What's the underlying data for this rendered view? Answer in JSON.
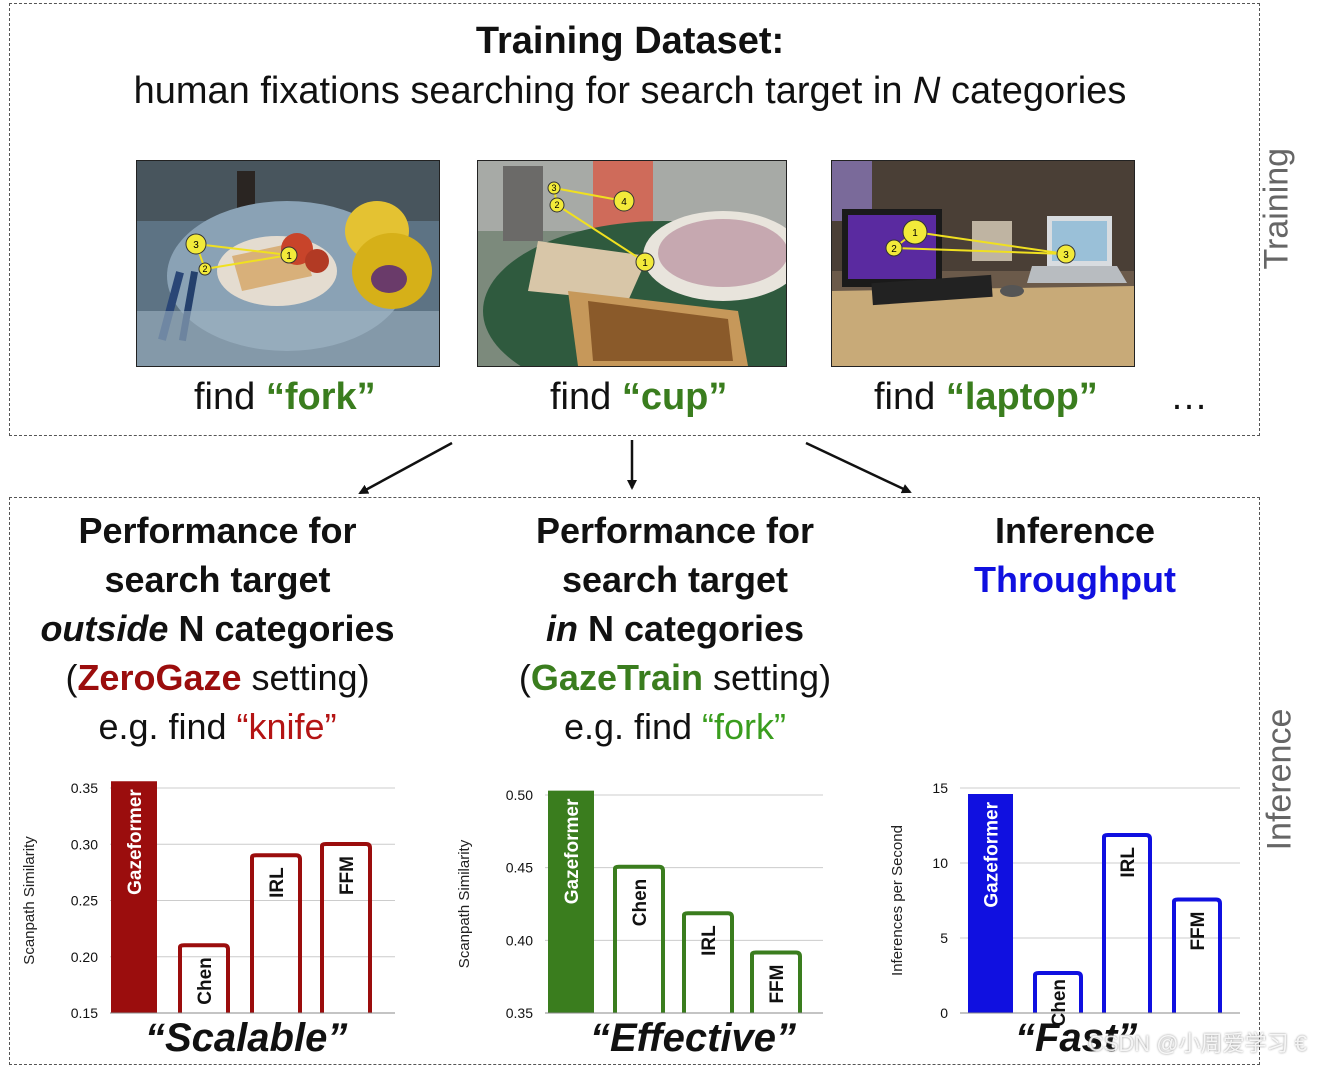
{
  "training": {
    "side_label": "Training",
    "title_bold": "Training Dataset:",
    "title_line2_a": "human fixations searching for search target in ",
    "title_line2_n": "N",
    "title_line2_b": " categories",
    "examples": [
      {
        "find": "find ",
        "target": "“fork”"
      },
      {
        "find": "find ",
        "target": "“cup”"
      },
      {
        "find": "find ",
        "target": "“laptop”"
      }
    ],
    "ellipsis": "…"
  },
  "inference": {
    "side_label": "Inference",
    "columns": [
      {
        "l1": "Performance for",
        "l2": "search target",
        "l3_italic": "outside",
        "l3_rest": " N categories",
        "l4_open": "(",
        "l4_name": "ZeroGaze",
        "l4_rest": " setting)",
        "l5_a": "e.g. find ",
        "l5_b": "“knife”",
        "motto": "“Scalable”"
      },
      {
        "l1": "Performance for",
        "l2": "search target",
        "l3_italic": "in",
        "l3_rest": " N categories",
        "l4_open": "(",
        "l4_name": "GazeTrain",
        "l4_rest": " setting)",
        "l5_a": "e.g. find ",
        "l5_b": "“fork”",
        "motto": "“Effective”"
      },
      {
        "l1": "Inference",
        "l2": "Throughput",
        "motto": "“Fast”"
      }
    ]
  },
  "watermark": "CSDN @小周爱学习 €",
  "colors": {
    "zerogaze": "#9b0d0d",
    "gazetrain": "#3a7d1e",
    "throughput": "#1010e0"
  },
  "chart_data": [
    {
      "type": "bar",
      "categories": [
        "Gazeformer",
        "Chen",
        "IRL",
        "FFM"
      ],
      "values": [
        0.356,
        0.212,
        0.292,
        0.302
      ],
      "ylabel": "Scanpath Similarity",
      "ylim": [
        0.15,
        0.35
      ],
      "yticks": [
        "0.15",
        "0.20",
        "0.25",
        "0.30",
        "0.35"
      ],
      "color": "#9b0d0d",
      "filled": [
        true,
        false,
        false,
        false
      ],
      "grid": true
    },
    {
      "type": "bar",
      "categories": [
        "Gazeformer",
        "Chen",
        "IRL",
        "FFM"
      ],
      "values": [
        0.503,
        0.452,
        0.42,
        0.393
      ],
      "ylabel": "Scanpath Similarity",
      "ylim": [
        0.35,
        0.5
      ],
      "yticks": [
        "0.35",
        "0.40",
        "0.45",
        "0.50"
      ],
      "color": "#3a7d1e",
      "filled": [
        true,
        false,
        false,
        false
      ],
      "grid": true
    },
    {
      "type": "bar",
      "categories": [
        "Gazeformer",
        "Chen",
        "IRL",
        "FFM"
      ],
      "values": [
        14.6,
        2.8,
        12.0,
        7.7
      ],
      "ylabel": "Inferences per Second",
      "ylim": [
        0,
        15
      ],
      "yticks": [
        "0",
        "5",
        "10",
        "15"
      ],
      "color": "#1010e0",
      "filled": [
        true,
        false,
        false,
        false
      ],
      "grid": true
    }
  ]
}
